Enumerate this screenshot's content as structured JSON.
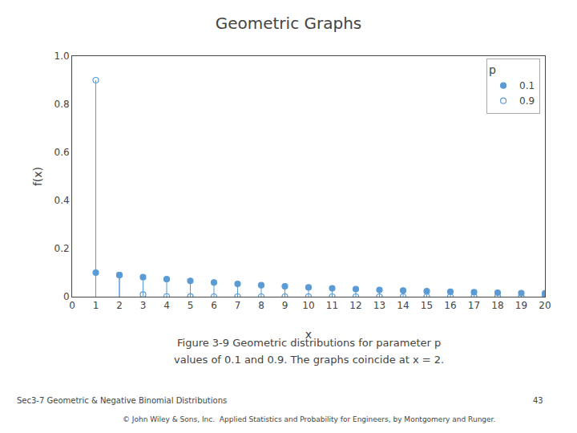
{
  "chart_data": {
    "type": "stem",
    "title": "Geometric Graphs",
    "xlabel": "x",
    "ylabel": "f(x)",
    "x": [
      1,
      2,
      3,
      4,
      5,
      6,
      7,
      8,
      9,
      10,
      11,
      12,
      13,
      14,
      15,
      16,
      17,
      18,
      19,
      20
    ],
    "series": [
      {
        "name": "0.1",
        "color": "#5B9BD5",
        "marker": "circle",
        "values": [
          0.1,
          0.09,
          0.081,
          0.0729,
          0.06561,
          0.059049,
          0.0531441,
          0.04782969,
          0.043046721,
          0.0387420489,
          0.03486784401,
          0.031381059609,
          0.0282429536481,
          0.02541865828329,
          0.022876792454961,
          0.0205891132094649,
          0.01853020188851841,
          0.01667718169966657,
          0.015009463529699911,
          0.013508517176729922
        ]
      },
      {
        "name": "0.9",
        "color": "#5B9BD5",
        "marker": "circle-open",
        "values": [
          0.9,
          0.09,
          0.009,
          0.0009,
          9e-05,
          9e-06,
          9e-07,
          9e-08,
          9e-09,
          9e-10,
          9e-11,
          9e-12,
          9e-13,
          9e-14,
          9e-15,
          9e-16,
          9e-17,
          9e-18,
          9e-19,
          9e-20
        ]
      }
    ],
    "legend_title": "p",
    "legend": "upper right",
    "xlim": [
      0,
      20
    ],
    "xticks": [
      0,
      1,
      2,
      3,
      4,
      5,
      6,
      7,
      8,
      9,
      10,
      11,
      12,
      13,
      14,
      15,
      16,
      17,
      18,
      19,
      20
    ],
    "ylim": [
      0,
      1.0
    ],
    "yticks": [
      0,
      0.2,
      0.4,
      0.6,
      0.8,
      {
        "value": 1.0,
        "label": "1.0"
      }
    ],
    "grid": false,
    "annotations": [
      "Figure 3-9 Geometric distributions for parameter p",
      "values of 0.1 and 0.9. The graphs coincide at x = 2.",
      "Sec3-7 Geometric & Negative Binomial Distributions",
      "43",
      "© John Wiley & Sons, Inc.  Applied Statistics and Probability for Engineers, by Montgomery and Runger."
    ]
  }
}
